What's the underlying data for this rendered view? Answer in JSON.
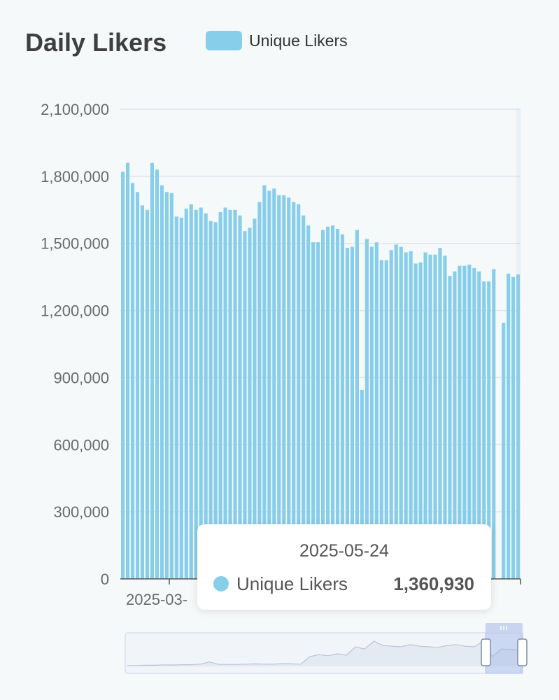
{
  "header": {
    "title": "Daily Likers"
  },
  "legend": {
    "label": "Unique Likers",
    "color": "#87ceeb"
  },
  "tooltip": {
    "date": "2025-05-24",
    "series": "Unique Likers",
    "value": "1,360,930"
  },
  "chart_data": {
    "type": "bar",
    "title": "Daily Likers",
    "ylim": [
      0,
      2100000
    ],
    "yticks": [
      0,
      300000,
      600000,
      900000,
      1200000,
      1500000,
      1800000,
      2100000
    ],
    "ytick_labels": [
      "0",
      "300,000",
      "600,000",
      "900,000",
      "1,200,000",
      "1,500,000",
      "1,800,000",
      "2,100,000"
    ],
    "x_visible_label": "2025-03-",
    "last_x": "2025-05-24",
    "grid": true,
    "legend_position": "top",
    "series": [
      {
        "name": "Unique Likers",
        "color": "#87ceeb",
        "values": [
          1820000,
          1860000,
          1770000,
          1730000,
          1670000,
          1650000,
          1860000,
          1830000,
          1760000,
          1730000,
          1725000,
          1620000,
          1615000,
          1655000,
          1675000,
          1650000,
          1660000,
          1635000,
          1600000,
          1595000,
          1640000,
          1660000,
          1650000,
          1650000,
          1625000,
          1555000,
          1570000,
          1610000,
          1685000,
          1760000,
          1735000,
          1745000,
          1715000,
          1715000,
          1705000,
          1685000,
          1675000,
          1625000,
          1580000,
          1505000,
          1505000,
          1560000,
          1575000,
          1580000,
          1565000,
          1540000,
          1480000,
          1485000,
          1560000,
          845000,
          1520000,
          1485000,
          1505000,
          1425000,
          1425000,
          1470000,
          1495000,
          1485000,
          1460000,
          1465000,
          1410000,
          1415000,
          1460000,
          1450000,
          1450000,
          1480000,
          1445000,
          1355000,
          1375000,
          1400000,
          1400000,
          1405000,
          1390000,
          1375000,
          1330000,
          1330000,
          1385000,
          0,
          1145000,
          1365000,
          1350000,
          1360930
        ]
      }
    ]
  }
}
